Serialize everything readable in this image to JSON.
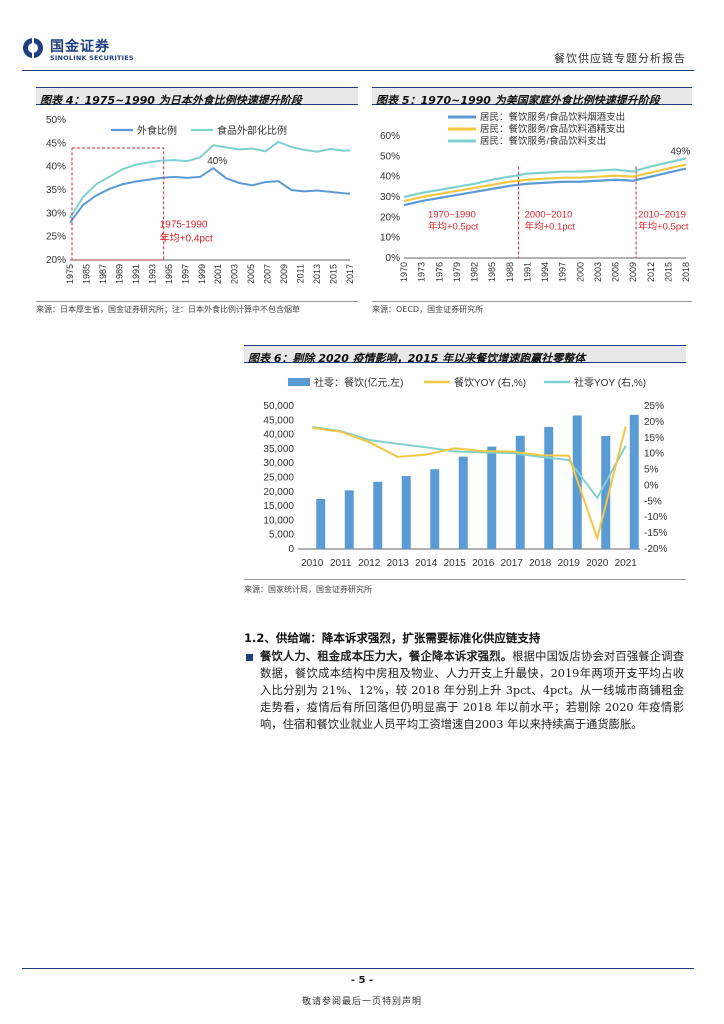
{
  "header": {
    "brand_cn": "国金证券",
    "brand_en": "SINOLINK SECURITIES",
    "report_title": "餐饮供应链专题分析报告"
  },
  "fig4": {
    "title": "图表 4：1975~1990 为日本外食比例快速提升阶段",
    "source": "来源：日本厚生省，国金证券研究所；注：日本外食比例计算中不包含烟草",
    "annotation_period": "1975-1990",
    "annotation_rate": "年均+0.4pct",
    "peak_label": "40%"
  },
  "fig5": {
    "title": "图表 5：1970~1990 为美国家庭外食比例快速提升阶段",
    "source": "来源：OECD，国金证券研究所",
    "end_label": "49%",
    "annotations": [
      {
        "period": "1970~1990",
        "rate": "年均+0.5pct"
      },
      {
        "period": "2000~2010",
        "rate": "年均+0.1pct"
      },
      {
        "period": "2010~2019",
        "rate": "年均+0.5pct"
      }
    ]
  },
  "fig6": {
    "title": "图表 6：剔除 2020 疫情影响，2015 年以来餐饮增速跑赢社零整体",
    "source": "来源：国家统计局，国金证券研究所"
  },
  "chart_data": [
    {
      "type": "line",
      "title": "图表 4：1975~1990 为日本外食比例快速提升阶段",
      "x": [
        1975,
        1977,
        1979,
        1981,
        1983,
        1985,
        1987,
        1989,
        1991,
        1993,
        1995,
        1997,
        1999,
        2001,
        2003,
        2005,
        2007,
        2009,
        2011,
        2013,
        2015,
        2017,
        2018
      ],
      "series": [
        {
          "name": "外食比例",
          "color": "#5b9bd5",
          "values": [
            28,
            31.8,
            33.8,
            35.2,
            36.2,
            36.8,
            37.2,
            37.6,
            37.8,
            37.6,
            37.8,
            39.7,
            37.5,
            36.5,
            36.0,
            36.7,
            36.9,
            35.0,
            34.7,
            34.9,
            34.6,
            34.3,
            34.2
          ]
        },
        {
          "name": "食品外部化比例",
          "color": "#7fd1cf",
          "values": [
            29,
            33.5,
            36.2,
            37.8,
            39.4,
            40.4,
            40.9,
            41.3,
            41.4,
            41.2,
            42.0,
            44.6,
            44.1,
            43.7,
            43.9,
            43.3,
            45.3,
            44.2,
            43.6,
            43.2,
            43.8,
            43.4,
            43.5
          ]
        }
      ],
      "xlabel": "",
      "ylabel": "",
      "ylim": [
        20,
        50
      ],
      "yticks": [
        "20%",
        "25%",
        "30%",
        "35%",
        "40%",
        "45%",
        "50%"
      ],
      "xticks": [
        "1975",
        "1985",
        "1987",
        "1989",
        "1991",
        "1993",
        "1995",
        "1997",
        "1999",
        "2001",
        "2003",
        "2005",
        "2007",
        "2009",
        "2011",
        "2013",
        "2015",
        "2017"
      ],
      "legend": "top"
    },
    {
      "type": "line",
      "title": "图表 5：1970~1990 为美国家庭外食比例快速提升阶段",
      "x": [
        1970,
        1973,
        1976,
        1979,
        1982,
        1985,
        1988,
        1991,
        1994,
        1997,
        2000,
        2003,
        2006,
        2009,
        2012,
        2015,
        2018
      ],
      "series": [
        {
          "name": "居民：餐饮服务/食品饮料烟酒支出",
          "color": "#5b9bd5",
          "values": [
            26.0,
            28.0,
            29.5,
            31.0,
            32.5,
            34.0,
            35.5,
            36.5,
            37.0,
            37.5,
            37.5,
            38.0,
            38.5,
            38.0,
            40.0,
            42.0,
            44.0
          ]
        },
        {
          "name": "居民：餐饮服务/食品饮料酒精支出",
          "color": "#f2c744",
          "values": [
            28.0,
            30.0,
            31.5,
            33.0,
            34.5,
            36.0,
            37.5,
            38.5,
            39.0,
            39.5,
            39.5,
            40.0,
            40.5,
            40.0,
            42.0,
            44.0,
            46.0
          ]
        },
        {
          "name": "居民：餐饮服务/食品饮料支出",
          "color": "#7fd1cf",
          "values": [
            30.0,
            32.0,
            33.5,
            35.0,
            36.5,
            38.5,
            40.0,
            41.5,
            42.0,
            42.5,
            42.5,
            43.0,
            43.5,
            42.5,
            45.0,
            47.0,
            49.0
          ]
        }
      ],
      "ylim": [
        0,
        60
      ],
      "yticks": [
        "0%",
        "10%",
        "20%",
        "30%",
        "40%",
        "50%",
        "60%"
      ],
      "xticks": [
        "1970",
        "1973",
        "1976",
        "1979",
        "1982",
        "1985",
        "1988",
        "1991",
        "1994",
        "1997",
        "2000",
        "2003",
        "2006",
        "2009",
        "2012",
        "2015",
        "2018"
      ],
      "legend": "top"
    },
    {
      "type": "bar",
      "title": "图表 6：剔除 2020 疫情影响，2015 年以来餐饮增速跑赢社零整体",
      "categories": [
        "2010",
        "2011",
        "2012",
        "2013",
        "2014",
        "2015",
        "2016",
        "2017",
        "2018",
        "2019",
        "2020",
        "2021"
      ],
      "series": [
        {
          "name": "社零：餐饮(亿元,左)",
          "type": "bar",
          "color": "#5b9bd5",
          "values": [
            17500,
            20500,
            23500,
            25500,
            27900,
            32300,
            35800,
            39600,
            42700,
            46700,
            39500,
            46900
          ]
        },
        {
          "name": "餐饮YOY (右,%)",
          "type": "line",
          "axis": "right",
          "color": "#f2c744",
          "values": [
            18.1,
            16.9,
            13.6,
            9.0,
            9.7,
            11.7,
            10.8,
            10.7,
            9.5,
            9.4,
            -16.6,
            18.6
          ]
        },
        {
          "name": "社零YOY (右,%)",
          "type": "line",
          "axis": "right",
          "color": "#7fd1cf",
          "values": [
            18.4,
            17.1,
            14.3,
            13.1,
            12.0,
            10.7,
            10.4,
            10.2,
            9.0,
            8.0,
            -3.9,
            12.5
          ]
        }
      ],
      "ylim": [
        0,
        50000
      ],
      "y2lim": [
        -20,
        25
      ],
      "yticks": [
        "0",
        "5,000",
        "10,000",
        "15,000",
        "20,000",
        "25,000",
        "30,000",
        "35,000",
        "40,000",
        "45,000",
        "50,000"
      ],
      "y2ticks": [
        "-20%",
        "-15%",
        "-10%",
        "-5%",
        "0%",
        "5%",
        "10%",
        "15%",
        "20%",
        "25%"
      ],
      "legend": "top"
    }
  ],
  "section": {
    "title": "1.2、供给端：降本诉求强烈，扩张需要标准化供应链支持",
    "lead": "餐饮人力、租金成本压力大，餐企降本诉求强烈。",
    "body": "根据中国饭店协会对百强餐企调查数据，餐饮成本结构中房租及物业、人力开支上升最快，2019年两项开支平均占收入比分别为 21%、12%，较 2018 年分别上升 3pct、4pct。从一线城市商铺租金走势看，疫情后有所回落但仍明显高于 2018 年以前水平；若剔除 2020 年疫情影响，住宿和餐饮业就业人员平均工资增速自2003 年以来持续高于通货膨胀。"
  },
  "footer": {
    "page_number": "- 5 -",
    "disclaimer": "敬请参阅最后一页特别声明"
  }
}
